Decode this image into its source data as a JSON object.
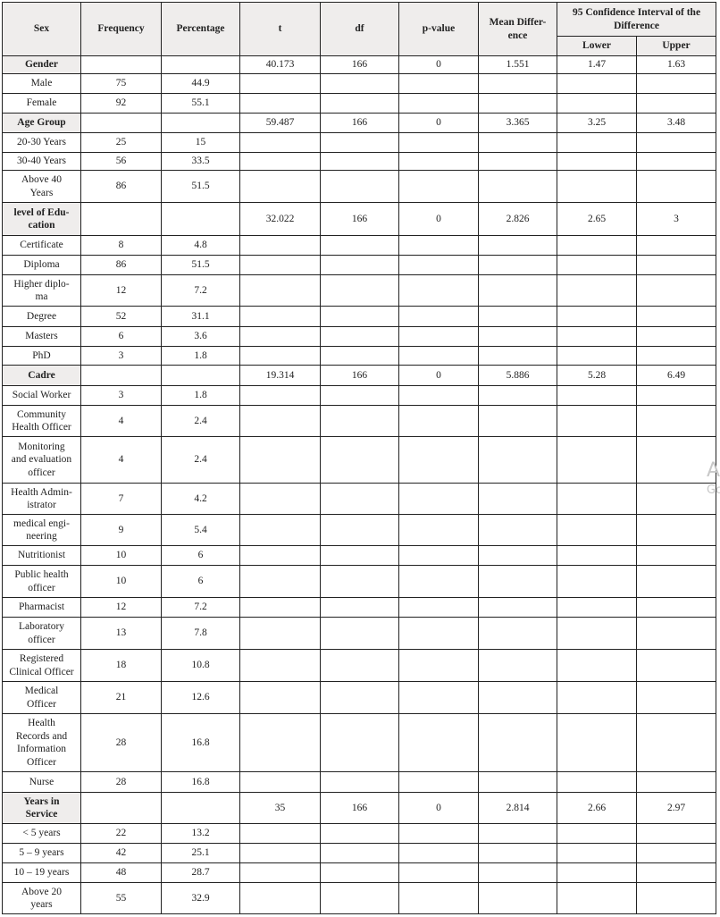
{
  "headers": {
    "sex": "Sex",
    "frequency": "Frequency",
    "percentage": "Percentage",
    "t": "t",
    "df": "df",
    "p_value": "p-value",
    "mean_difference": "Mean Differ-\nence",
    "ci": "95 Confidence Interval of the\nDifference",
    "lower": "Lower",
    "upper": "Upper"
  },
  "rows": [
    {
      "group": true,
      "label": "Gender",
      "freq": "",
      "pct": "",
      "t": "40.173",
      "df": "166",
      "p": "0",
      "md": "1.551",
      "lower": "1.47",
      "upper": "1.63"
    },
    {
      "label": "Male",
      "freq": "75",
      "pct": "44.9"
    },
    {
      "label": "Female",
      "freq": "92",
      "pct": "55.1"
    },
    {
      "group": true,
      "label": "Age Group",
      "freq": "",
      "pct": "",
      "t": "59.487",
      "df": "166",
      "p": "0",
      "md": "3.365",
      "lower": "3.25",
      "upper": "3.48"
    },
    {
      "label": "20-30 Years",
      "freq": "25",
      "pct": "15"
    },
    {
      "label": "30-40 Years",
      "freq": "56",
      "pct": "33.5"
    },
    {
      "label": "Above 40\nYears",
      "freq": "86",
      "pct": "51.5"
    },
    {
      "group": true,
      "label": "level of Edu-\ncation",
      "freq": "",
      "pct": "",
      "t": "32.022",
      "df": "166",
      "p": "0",
      "md": "2.826",
      "lower": "2.65",
      "upper": "3"
    },
    {
      "label": "Certificate",
      "freq": "8",
      "pct": "4.8"
    },
    {
      "label": "Diploma",
      "freq": "86",
      "pct": "51.5"
    },
    {
      "label": "Higher diplo-\nma",
      "freq": "12",
      "pct": "7.2"
    },
    {
      "label": "Degree",
      "freq": "52",
      "pct": "31.1"
    },
    {
      "label": "Masters",
      "freq": "6",
      "pct": "3.6"
    },
    {
      "label": "PhD",
      "freq": "3",
      "pct": "1.8"
    },
    {
      "group": true,
      "label": "Cadre",
      "freq": "",
      "pct": "",
      "t": "19.314",
      "df": "166",
      "p": "0",
      "md": "5.886",
      "lower": "5.28",
      "upper": "6.49"
    },
    {
      "label": "Social Worker",
      "freq": "3",
      "pct": "1.8"
    },
    {
      "label": "Community\nHealth Officer",
      "freq": "4",
      "pct": "2.4"
    },
    {
      "label": "Monitoring\nand evaluation\nofficer",
      "freq": "4",
      "pct": "2.4"
    },
    {
      "label": "Health Admin-\nistrator",
      "freq": "7",
      "pct": "4.2"
    },
    {
      "label": "medical engi-\nneering",
      "freq": "9",
      "pct": "5.4"
    },
    {
      "label": "Nutritionist",
      "freq": "10",
      "pct": "6"
    },
    {
      "label": "Public health\nofficer",
      "freq": "10",
      "pct": "6"
    },
    {
      "label": "Pharmacist",
      "freq": "12",
      "pct": "7.2"
    },
    {
      "label": "Laboratory\nofficer",
      "freq": "13",
      "pct": "7.8"
    },
    {
      "label": "Registered\nClinical Officer",
      "freq": "18",
      "pct": "10.8"
    },
    {
      "label": "Medical\nOfficer",
      "freq": "21",
      "pct": "12.6"
    },
    {
      "label": "Health\nRecords and\nInformation\nOfficer",
      "freq": "28",
      "pct": "16.8"
    },
    {
      "label": "Nurse",
      "freq": "28",
      "pct": "16.8"
    },
    {
      "group": true,
      "label": "Years in\nService",
      "freq": "",
      "pct": "",
      "t": "35",
      "df": "166",
      "p": "0",
      "md": "2.814",
      "lower": "2.66",
      "upper": "2.97"
    },
    {
      "label": "< 5 years",
      "freq": "22",
      "pct": "13.2"
    },
    {
      "label": "5 – 9 years",
      "freq": "42",
      "pct": "25.1"
    },
    {
      "label": "10 – 19 years",
      "freq": "48",
      "pct": "28.7"
    },
    {
      "label": "Above 20\nyears",
      "freq": "55",
      "pct": "32.9"
    }
  ],
  "watermark": {
    "line1": "A",
    "line2": "Go"
  }
}
